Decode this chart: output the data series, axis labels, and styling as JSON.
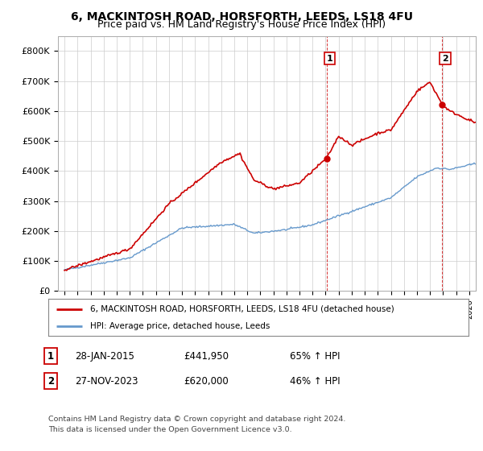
{
  "title": "6, MACKINTOSH ROAD, HORSFORTH, LEEDS, LS18 4FU",
  "subtitle": "Price paid vs. HM Land Registry's House Price Index (HPI)",
  "sale1_date": "28-JAN-2015",
  "sale1_price": 441950,
  "sale1_label": "1",
  "sale1_hpi": "65% ↑ HPI",
  "sale2_date": "27-NOV-2023",
  "sale2_price": 620000,
  "sale2_label": "2",
  "sale2_hpi": "46% ↑ HPI",
  "legend_line1": "6, MACKINTOSH ROAD, HORSFORTH, LEEDS, LS18 4FU (detached house)",
  "legend_line2": "HPI: Average price, detached house, Leeds",
  "footnote1": "Contains HM Land Registry data © Crown copyright and database right 2024.",
  "footnote2": "This data is licensed under the Open Government Licence v3.0.",
  "ylim_min": 0,
  "ylim_max": 850000,
  "yticks": [
    0,
    100000,
    200000,
    300000,
    400000,
    500000,
    600000,
    700000,
    800000
  ],
  "ytick_labels": [
    "£0",
    "£100K",
    "£200K",
    "£300K",
    "£400K",
    "£500K",
    "£600K",
    "£700K",
    "£800K"
  ],
  "red_color": "#cc0000",
  "blue_color": "#6699cc",
  "background_color": "#ffffff",
  "grid_color": "#cccccc",
  "title_fontsize": 10,
  "subtitle_fontsize": 9,
  "axis_fontsize": 8
}
